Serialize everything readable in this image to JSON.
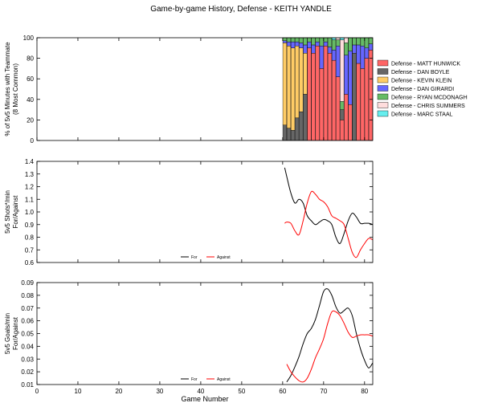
{
  "title": "Game-by-game History, Defense - KEITH YANDLE",
  "chart_data": [
    {
      "type": "bar",
      "stacked": true,
      "ylabel": "% of 5v5 Minutes with Teammate\n(8 Most Common)",
      "xlim": [
        0,
        82
      ],
      "ylim": [
        0,
        100
      ],
      "yticks": [
        0,
        20,
        40,
        60,
        80,
        100
      ],
      "legend_position": "right",
      "colors": [
        "#ff6666",
        "#666666",
        "#ffcc66",
        "#6666ff",
        "#66bb66",
        "#ffdddd",
        "#66eeee"
      ],
      "series": [
        {
          "name": "Defense - MATT HUNWICK",
          "color": "#ff6666",
          "games": [
            61,
            62,
            63,
            64,
            65,
            66,
            67,
            68,
            69,
            70,
            71,
            72,
            73,
            74,
            75,
            76,
            77,
            78,
            79,
            80,
            81,
            82
          ],
          "values": [
            0,
            0,
            0,
            0,
            0,
            0,
            90,
            85,
            92,
            70,
            92,
            85,
            78,
            62,
            20,
            45,
            35,
            0,
            75,
            70,
            80,
            88
          ]
        },
        {
          "name": "Defense - DAN BOYLE",
          "color": "#666666",
          "games": [
            61,
            62,
            63,
            64,
            65,
            66,
            67,
            68,
            69,
            70,
            71,
            72,
            73,
            74,
            75,
            76,
            77,
            78,
            79,
            80,
            81,
            82
          ],
          "values": [
            15,
            12,
            10,
            22,
            28,
            45,
            0,
            0,
            0,
            0,
            0,
            0,
            0,
            0,
            10,
            0,
            0,
            85,
            0,
            0,
            0,
            0
          ]
        },
        {
          "name": "Defense - KEVIN KLEIN",
          "color": "#ffcc66",
          "games": [
            61,
            62,
            63,
            64,
            65,
            66,
            67,
            68,
            69,
            70,
            71,
            72,
            73,
            74,
            75,
            76,
            77,
            78,
            79,
            80,
            81,
            82
          ],
          "values": [
            80,
            80,
            80,
            70,
            62,
            40,
            0,
            0,
            0,
            0,
            0,
            0,
            0,
            0,
            0,
            0,
            0,
            0,
            0,
            0,
            0,
            0
          ]
        },
        {
          "name": "Defense - DAN GIRARDI",
          "color": "#6666ff",
          "games": [
            61,
            62,
            63,
            64,
            65,
            66,
            67,
            68,
            69,
            70,
            71,
            72,
            73,
            74,
            75,
            76,
            77,
            78,
            79,
            80,
            81,
            82
          ],
          "values": [
            2,
            4,
            6,
            4,
            5,
            8,
            6,
            8,
            4,
            22,
            4,
            6,
            10,
            30,
            0,
            38,
            52,
            8,
            18,
            22,
            10,
            6
          ]
        },
        {
          "name": "Defense - RYAN MCDONAGH",
          "color": "#66bb66",
          "games": [
            61,
            62,
            63,
            64,
            65,
            66,
            67,
            68,
            69,
            70,
            71,
            72,
            73,
            74,
            75,
            76,
            77,
            78,
            79,
            80,
            81,
            82
          ],
          "values": [
            3,
            4,
            4,
            4,
            5,
            7,
            4,
            7,
            4,
            8,
            4,
            9,
            10,
            6,
            8,
            12,
            13,
            7,
            7,
            8,
            10,
            6
          ]
        },
        {
          "name": "Defense - CHRIS SUMMERS",
          "color": "#ffdddd",
          "games": [
            61,
            62,
            63,
            64,
            65,
            66,
            67,
            68,
            69,
            70,
            71,
            72,
            73,
            74,
            75,
            76,
            77,
            78,
            79,
            80,
            81,
            82
          ],
          "values": [
            0,
            0,
            0,
            0,
            0,
            0,
            0,
            0,
            0,
            0,
            0,
            0,
            0,
            2,
            60,
            5,
            0,
            0,
            0,
            0,
            0,
            0
          ]
        },
        {
          "name": "Defense - MARC STAAL",
          "color": "#66eeee",
          "games": [
            61,
            62,
            63,
            64,
            65,
            66,
            67,
            68,
            69,
            70,
            71,
            72,
            73,
            74,
            75,
            76,
            77,
            78,
            79,
            80,
            81,
            82
          ],
          "values": [
            0,
            0,
            0,
            0,
            0,
            0,
            0,
            0,
            0,
            0,
            0,
            0,
            2,
            0,
            2,
            0,
            0,
            0,
            0,
            0,
            0,
            0
          ]
        }
      ]
    },
    {
      "type": "line",
      "ylabel": "5v5 Shots*/min\nFor/Against",
      "xlim": [
        0,
        82
      ],
      "ylim": [
        0.6,
        1.4
      ],
      "yticks": [
        0.6,
        0.7,
        0.8,
        0.9,
        1.0,
        1.1,
        1.2,
        1.3,
        1.4
      ],
      "legend_position": "bottom-center",
      "series": [
        {
          "name": "For",
          "color": "#000000",
          "x": [
            60.5,
            61,
            62,
            63,
            64,
            65,
            66,
            67,
            68,
            69,
            70,
            71,
            72,
            73,
            74,
            75,
            76,
            77,
            78,
            79,
            80,
            81,
            82
          ],
          "y": [
            1.35,
            1.28,
            1.15,
            1.07,
            1.1,
            1.07,
            0.97,
            0.93,
            0.9,
            0.92,
            0.94,
            0.93,
            0.9,
            0.8,
            0.75,
            0.83,
            0.93,
            0.99,
            0.96,
            0.91,
            0.91,
            0.91,
            0.9
          ]
        },
        {
          "name": "Against",
          "color": "#ff0000",
          "x": [
            60.5,
            61,
            62,
            63,
            64,
            65,
            66,
            67,
            68,
            69,
            70,
            71,
            72,
            73,
            74,
            75,
            76,
            77,
            78,
            79,
            80,
            81,
            82
          ],
          "y": [
            0.91,
            0.92,
            0.91,
            0.85,
            0.82,
            0.93,
            1.07,
            1.16,
            1.14,
            1.1,
            1.08,
            1.04,
            0.97,
            0.95,
            0.93,
            0.9,
            0.79,
            0.68,
            0.64,
            0.7,
            0.75,
            0.79,
            0.78
          ]
        }
      ]
    },
    {
      "type": "line",
      "ylabel": "5v5 Goals/min\nFor/Against",
      "xlabel": "Game Number",
      "xlim": [
        0,
        82
      ],
      "xticks": [
        0,
        10,
        20,
        30,
        40,
        50,
        60,
        70,
        80
      ],
      "ylim": [
        0.01,
        0.09
      ],
      "yticks": [
        0.01,
        0.02,
        0.03,
        0.04,
        0.05,
        0.06,
        0.07,
        0.08,
        0.09
      ],
      "legend_position": "bottom-center",
      "series": [
        {
          "name": "For",
          "color": "#000000",
          "x": [
            61,
            62,
            63,
            64,
            65,
            66,
            67,
            68,
            69,
            70,
            71,
            72,
            73,
            74,
            75,
            76,
            77,
            78,
            79,
            80,
            81,
            82
          ],
          "y": [
            0.012,
            0.017,
            0.024,
            0.032,
            0.042,
            0.05,
            0.054,
            0.061,
            0.072,
            0.083,
            0.085,
            0.08,
            0.071,
            0.066,
            0.068,
            0.07,
            0.064,
            0.05,
            0.038,
            0.029,
            0.023,
            0.027
          ]
        },
        {
          "name": "Against",
          "color": "#ff0000",
          "x": [
            61,
            62,
            63,
            64,
            65,
            66,
            67,
            68,
            69,
            70,
            71,
            72,
            73,
            74,
            75,
            76,
            77,
            78,
            79,
            80,
            81,
            82
          ],
          "y": [
            0.026,
            0.02,
            0.016,
            0.013,
            0.012,
            0.015,
            0.022,
            0.031,
            0.038,
            0.046,
            0.058,
            0.067,
            0.067,
            0.064,
            0.058,
            0.051,
            0.047,
            0.048,
            0.049,
            0.049,
            0.049,
            0.048
          ]
        }
      ]
    }
  ]
}
